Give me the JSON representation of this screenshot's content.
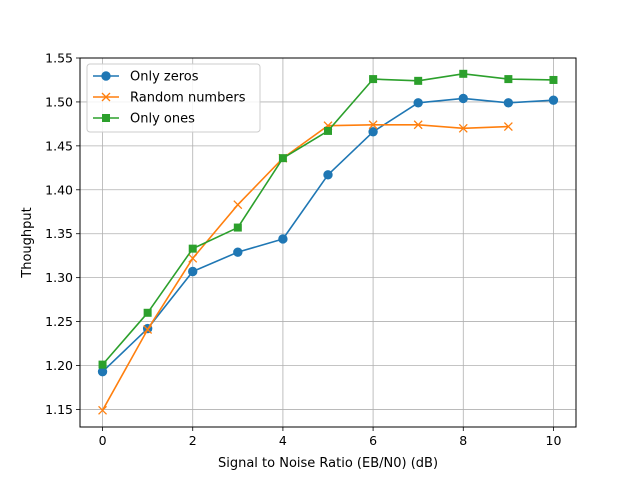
{
  "chart_data": {
    "type": "line",
    "xlabel": "Signal to Noise Ratio (EB/N0) (dB)",
    "ylabel": "Thoughput",
    "xlim": [
      -0.5,
      10.5
    ],
    "ylim": [
      1.13,
      1.55
    ],
    "xticks": [
      0,
      2,
      4,
      6,
      8,
      10
    ],
    "yticks": [
      1.15,
      1.2,
      1.25,
      1.3,
      1.35,
      1.4,
      1.45,
      1.5,
      1.55
    ],
    "ytick_labels": [
      "1.15",
      "1.20",
      "1.25",
      "1.30",
      "1.35",
      "1.40",
      "1.45",
      "1.50",
      "1.55"
    ],
    "grid": true,
    "legend_position": "upper-left",
    "series": [
      {
        "name": "Only zeros",
        "color": "#1f77b4",
        "marker": "circle",
        "x": [
          0,
          1,
          2,
          3,
          4,
          5,
          6,
          7,
          8,
          9,
          10
        ],
        "values": [
          1.193,
          1.242,
          1.307,
          1.329,
          1.344,
          1.417,
          1.466,
          1.499,
          1.504,
          1.499,
          1.502
        ]
      },
      {
        "name": "Random numbers",
        "color": "#ff7f0e",
        "marker": "x",
        "x": [
          0,
          1,
          2,
          3,
          4,
          5,
          6,
          7,
          8,
          9
        ],
        "values": [
          1.149,
          1.241,
          1.322,
          1.383,
          1.436,
          1.473,
          1.474,
          1.474,
          1.47,
          1.472
        ]
      },
      {
        "name": "Only ones",
        "color": "#2ca02c",
        "marker": "square",
        "x": [
          0,
          1,
          2,
          3,
          4,
          5,
          6,
          7,
          8,
          9,
          10
        ],
        "values": [
          1.201,
          1.26,
          1.333,
          1.357,
          1.436,
          1.467,
          1.526,
          1.524,
          1.532,
          1.526,
          1.525
        ]
      }
    ]
  }
}
